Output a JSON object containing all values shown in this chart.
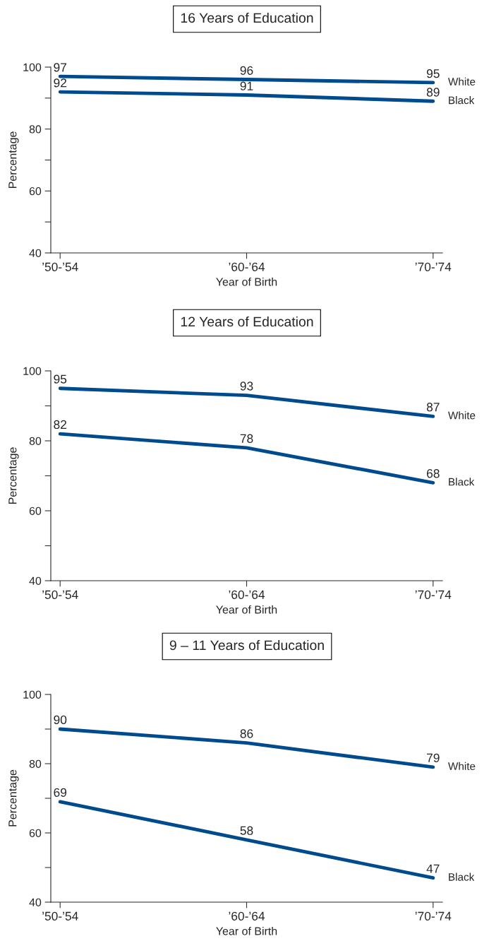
{
  "chart_data": [
    {
      "type": "line",
      "title": "16 Years of Education",
      "xlabel": "Year of Birth",
      "ylabel": "Percentage",
      "categories": [
        "’50-’54",
        "’60-’64",
        "’70-’74"
      ],
      "series": [
        {
          "name": "White",
          "color": "#004b8d",
          "values": [
            97,
            96,
            95
          ]
        },
        {
          "name": "Black",
          "color": "#004b8d",
          "values": [
            92,
            91,
            89
          ]
        }
      ],
      "ylim": [
        40,
        100
      ],
      "yticks": [
        40,
        {
          "value": 50,
          "label": null
        },
        60,
        {
          "value": 70,
          "label": null
        },
        80,
        {
          "value": 90,
          "label": null
        },
        100
      ],
      "data_labels": true,
      "legend": false,
      "grid": false,
      "marker": "none",
      "line_style": "solid"
    },
    {
      "type": "line",
      "title": "12 Years of Education",
      "xlabel": "Year of Birth",
      "ylabel": "Percentage",
      "categories": [
        "’50-’54",
        "’60-’64",
        "’70-’74"
      ],
      "series": [
        {
          "name": "White",
          "color": "#004b8d",
          "values": [
            95,
            93,
            87
          ]
        },
        {
          "name": "Black",
          "color": "#004b8d",
          "values": [
            82,
            78,
            68
          ]
        }
      ],
      "ylim": [
        40,
        100
      ],
      "yticks": [
        40,
        {
          "value": 50,
          "label": null
        },
        60,
        {
          "value": 70,
          "label": null
        },
        80,
        {
          "value": 90,
          "label": null
        },
        100
      ],
      "data_labels": true,
      "legend": false,
      "grid": false,
      "marker": "none",
      "line_style": "solid"
    },
    {
      "type": "line",
      "title": "9 – 11 Years of Education",
      "xlabel": "Year of Birth",
      "ylabel": "Percentage",
      "categories": [
        "’50-’54",
        "’60-’64",
        "’70-’74"
      ],
      "series": [
        {
          "name": "White",
          "color": "#004b8d",
          "values": [
            90,
            86,
            79
          ]
        },
        {
          "name": "Black",
          "color": "#004b8d",
          "values": [
            69,
            58,
            47
          ]
        }
      ],
      "ylim": [
        40,
        100
      ],
      "yticks": [
        40,
        {
          "value": 50,
          "label": null
        },
        60,
        {
          "value": 70,
          "label": null
        },
        80,
        {
          "value": 90,
          "label": null
        },
        100
      ],
      "data_labels": true,
      "legend": false,
      "grid": false,
      "marker": "none",
      "line_style": "solid"
    }
  ]
}
